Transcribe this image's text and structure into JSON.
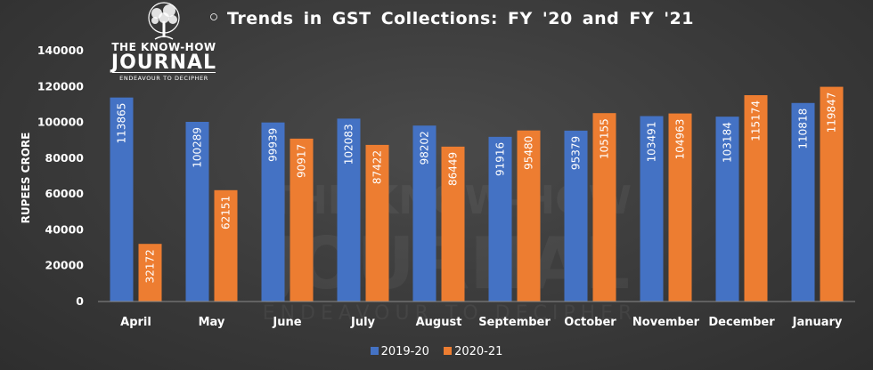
{
  "logo": {
    "line1": "THE KNOW-HOW",
    "line2": "JOURNAL",
    "line3": "ENDEAVOUR TO DECIPHER"
  },
  "colors": {
    "series1": "#4472C4",
    "series2": "#ED7D31",
    "background": "#3a3a3a"
  },
  "chart_data": {
    "type": "bar",
    "title": "Trends in GST Collections: FY '20 and FY '21",
    "xlabel": "",
    "ylabel": "RUPEES CRORE",
    "ylim": [
      0,
      140000
    ],
    "yticks": [
      0,
      20000,
      40000,
      60000,
      80000,
      100000,
      120000,
      140000
    ],
    "grid": false,
    "legend_position": "bottom",
    "categories": [
      "April",
      "May",
      "June",
      "July",
      "August",
      "September",
      "October",
      "November",
      "December",
      "January"
    ],
    "series": [
      {
        "name": "2019-20",
        "values": [
          113865,
          100289,
          99939,
          102083,
          98202,
          91916,
          95379,
          103491,
          103184,
          110818
        ]
      },
      {
        "name": "2020-21",
        "values": [
          32172,
          62151,
          90917,
          87422,
          86449,
          95480,
          105155,
          104963,
          115174,
          119847
        ]
      }
    ]
  }
}
